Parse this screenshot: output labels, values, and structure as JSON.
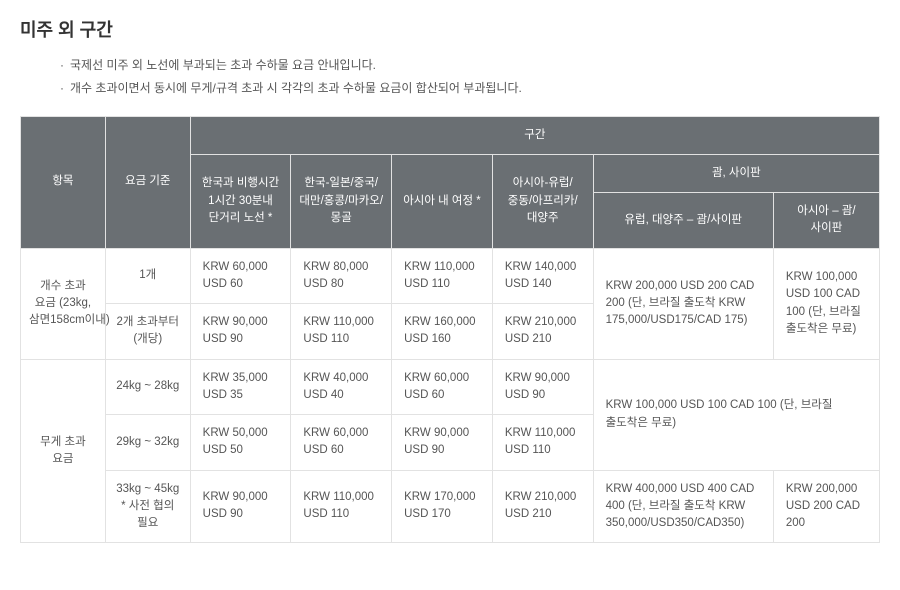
{
  "title": "미주 외 구간",
  "notes": [
    "국제선 미주 외 노선에 부과되는 초과 수하물 요금 안내입니다.",
    "개수 초과이면서 동시에 무게/규격 초과 시 각각의 초과 수하물 요금이 합산되어 부과됩니다."
  ],
  "header": {
    "colItem": "항목",
    "colFeeBasis": "요금 기준",
    "colSegment": "구간",
    "colShort": "한국과 비행시간 1시간 30분내 단거리 노선 *",
    "colJpCn": "한국-일본/중국/대만/홍콩/마카오/몽골",
    "colAsia": "아시아 내 여정 *",
    "colEuMeAfOc": "아시아-유럽/중동/아프리카/대양주",
    "colGuamSaipan": "괌, 사이판",
    "colGuamEu": "유럽, 대양주 – 괌/사이판",
    "colGuamAsia": "아시아 – 괌/사이판"
  },
  "rows": {
    "countExcess": {
      "label": "개수 초과 요금 (23kg, 삼면158cm이내)",
      "one": {
        "basis": "1개",
        "short": "KRW 60,000 USD 60",
        "jpcn": "KRW 80,000 USD 80",
        "asia": "KRW 110,000 USD 110",
        "eume": "KRW 140,000 USD 140"
      },
      "twoPlus": {
        "basis": "2개 초과부터 (개당)",
        "short": "KRW 90,000 USD 90",
        "jpcn": "KRW 110,000 USD 110",
        "asia": "KRW 160,000 USD 160",
        "eume": "KRW 210,000 USD 210"
      },
      "guamEu": "KRW 200,000 USD 200 CAD 200 (단, 브라질 출도착 KRW 175,000/USD175/CAD 175)",
      "guamAsia": "KRW 100,000 USD 100 CAD 100 (단, 브라질 출도착은 무료)"
    },
    "weightExcess": {
      "label": "무게 초과 요금",
      "r24_28": {
        "basis": "24kg ~ 28kg",
        "short": "KRW 35,000 USD 35",
        "jpcn": "KRW 40,000 USD 40",
        "asia": "KRW 60,000 USD 60",
        "eume": "KRW 90,000 USD 90"
      },
      "r29_32": {
        "basis": "29kg ~ 32kg",
        "short": "KRW 50,000 USD 50",
        "jpcn": "KRW 60,000 USD 60",
        "asia": "KRW 90,000 USD 90",
        "eume": "KRW 110,000 USD 110"
      },
      "guamUpper": "KRW 100,000 USD 100 CAD 100 (단, 브라질 출도착은 무료)",
      "r33_45": {
        "basis": "33kg ~ 45kg * 사전 협의 필요",
        "short": "KRW 90,000 USD 90",
        "jpcn": "KRW 110,000 USD 110",
        "asia": "KRW 170,000 USD 170",
        "eume": "KRW 210,000 USD 210",
        "guamEu": "KRW 400,000 USD 400 CAD 400 (단, 브라질 출도착 KRW 350,000/USD350/CAD350)",
        "guamAsia": "KRW 200,000 USD 200 CAD 200"
      }
    }
  }
}
